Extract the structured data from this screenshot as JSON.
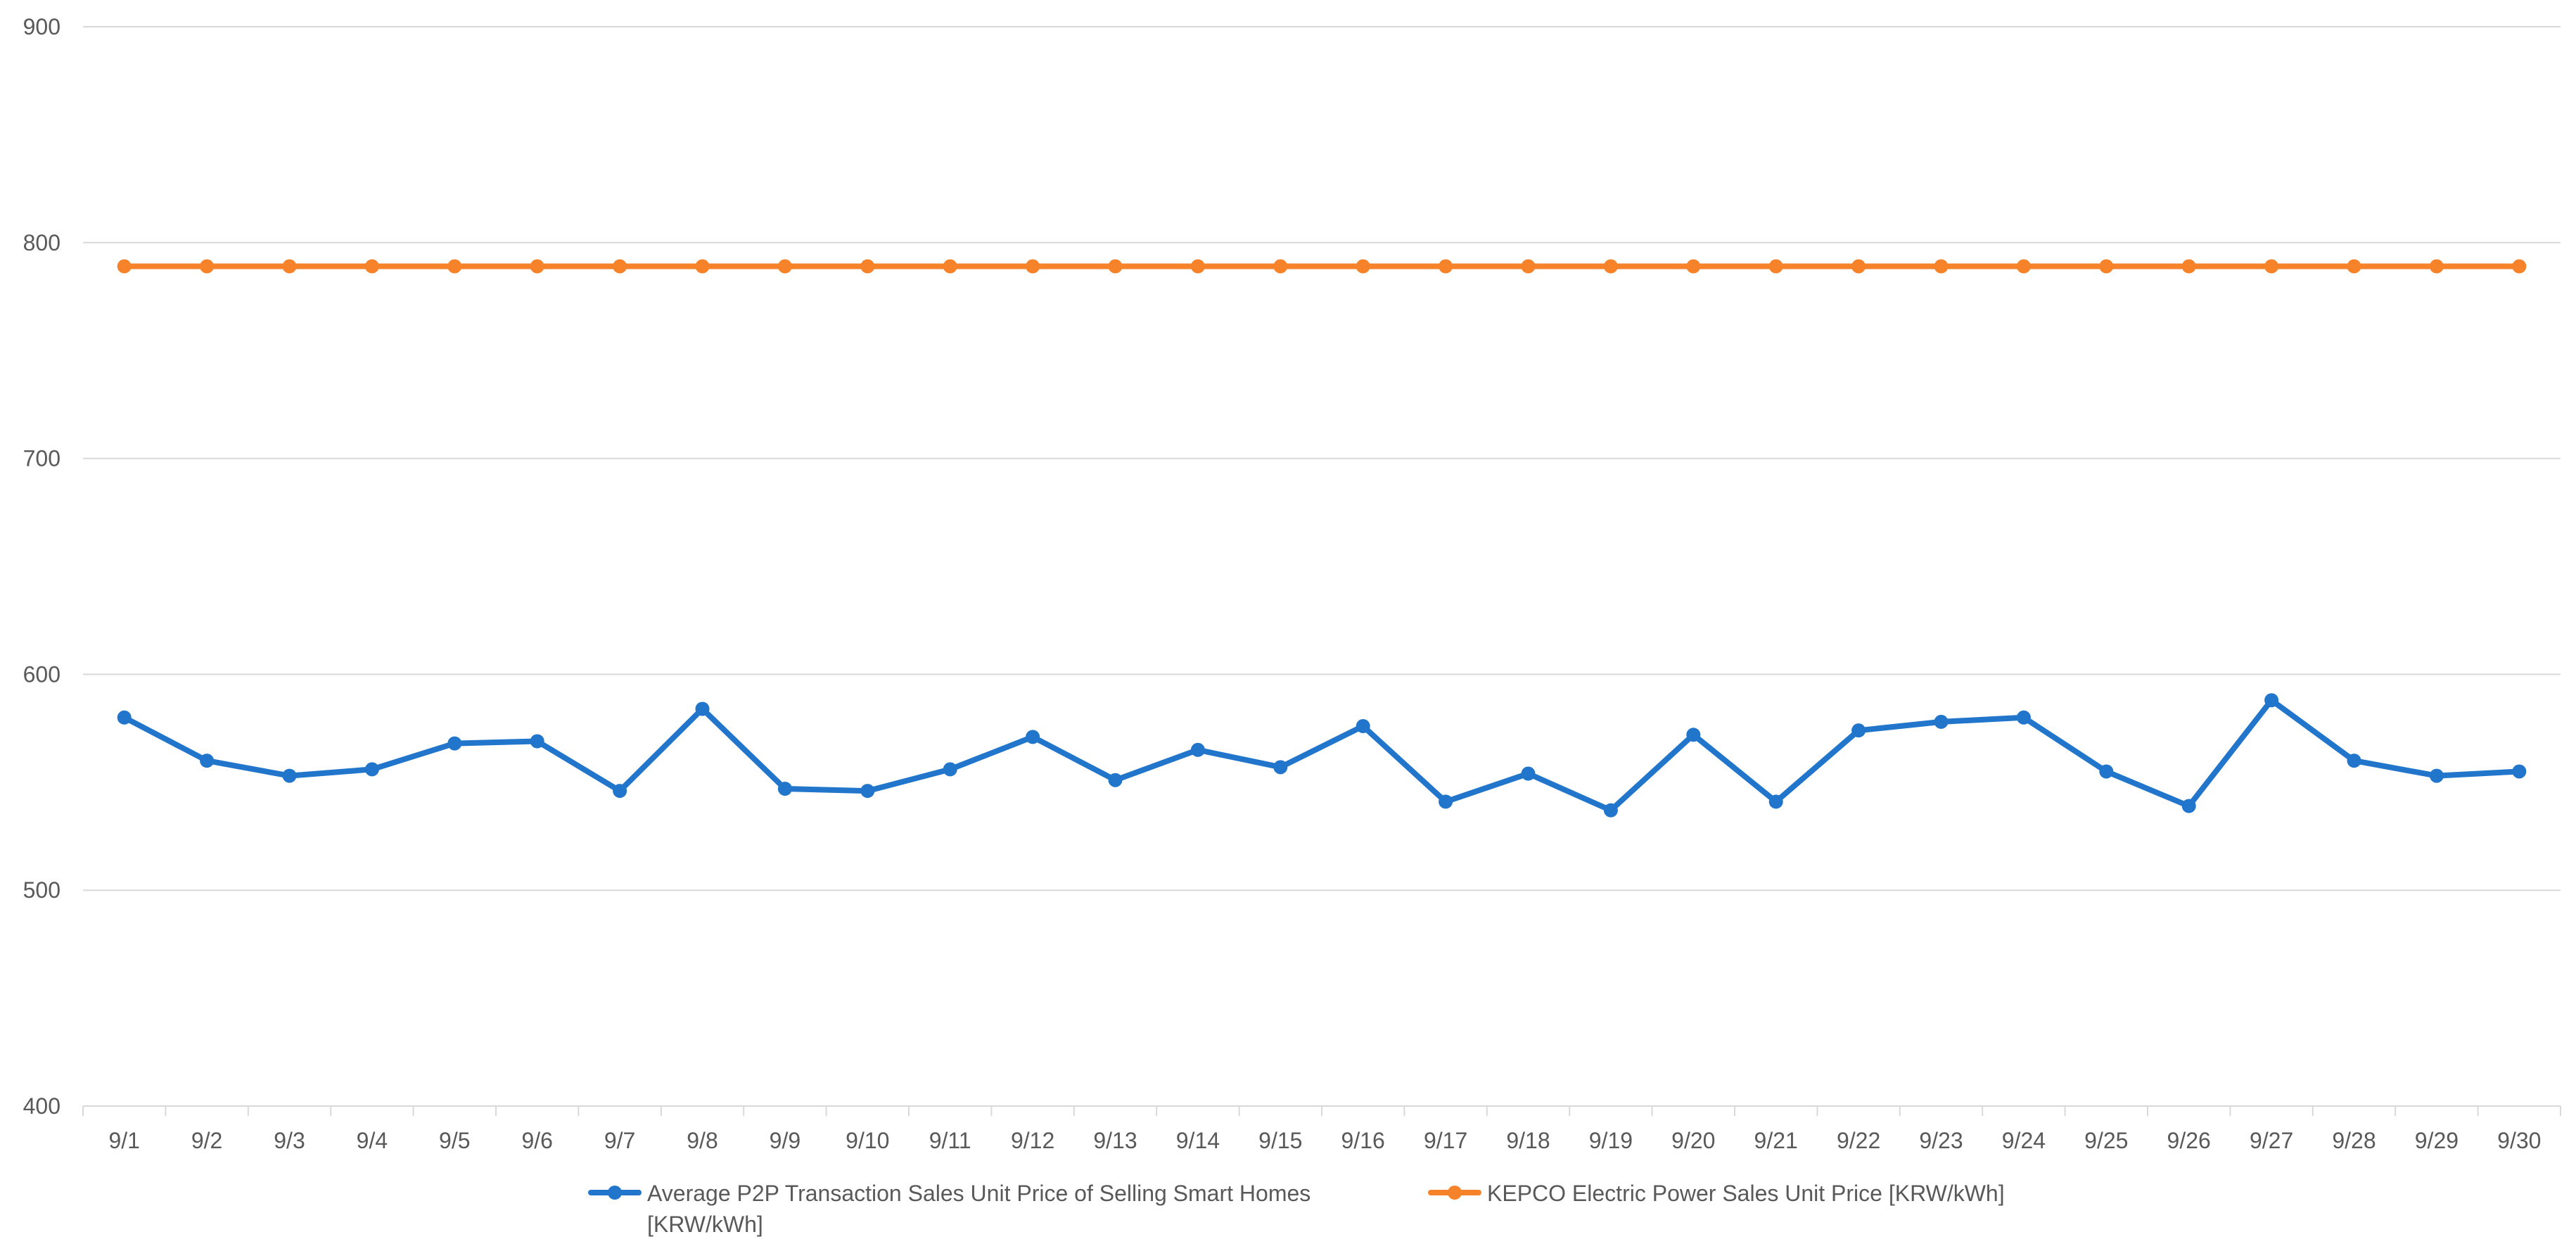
{
  "chart_data": {
    "type": "line",
    "title": "",
    "xlabel": "",
    "ylabel": "",
    "ylim": [
      400,
      900
    ],
    "yticks": [
      400,
      500,
      600,
      700,
      800,
      900
    ],
    "grid": true,
    "legend_position": "bottom",
    "categories": [
      "9/1",
      "9/2",
      "9/3",
      "9/4",
      "9/5",
      "9/6",
      "9/7",
      "9/8",
      "9/9",
      "9/10",
      "9/11",
      "9/12",
      "9/13",
      "9/14",
      "9/15",
      "9/16",
      "9/17",
      "9/18",
      "9/19",
      "9/20",
      "9/21",
      "9/22",
      "9/23",
      "9/24",
      "9/25",
      "9/26",
      "9/27",
      "9/28",
      "9/29",
      "9/30"
    ],
    "series": [
      {
        "name": "Average P2P Transaction Sales Unit Price of Selling Smart Homes [KRW/kWh]",
        "legend_lines": [
          "Average P2P Transaction Sales Unit Price of Selling Smart Homes",
          "[KRW/kWh]"
        ],
        "color": "#2176cb",
        "values": [
          580,
          560,
          553,
          556,
          568,
          569,
          546,
          584,
          547,
          546,
          556,
          571,
          551,
          565,
          557,
          576,
          541,
          554,
          537,
          572,
          541,
          574,
          578,
          580,
          555,
          539,
          588,
          560,
          553,
          555
        ]
      },
      {
        "name": "KEPCO Electric Power Sales Unit Price [KRW/kWh]",
        "legend_lines": [
          "KEPCO Electric Power Sales Unit Price [KRW/kWh]"
        ],
        "color": "#f6822a",
        "values": [
          789,
          789,
          789,
          789,
          789,
          789,
          789,
          789,
          789,
          789,
          789,
          789,
          789,
          789,
          789,
          789,
          789,
          789,
          789,
          789,
          789,
          789,
          789,
          789,
          789,
          789,
          789,
          789,
          789,
          789
        ]
      }
    ]
  }
}
